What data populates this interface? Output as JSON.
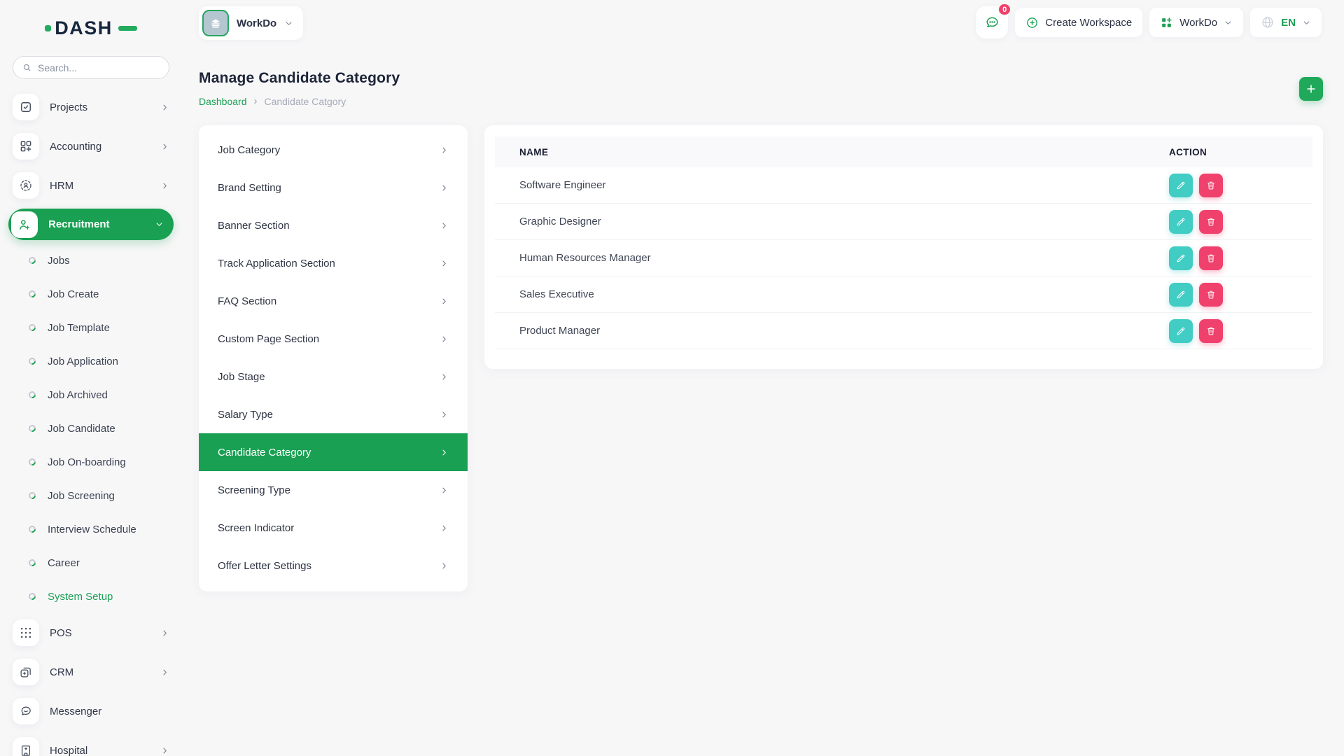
{
  "app": {
    "name": "DASH"
  },
  "colors": {
    "primary_green": "#1aa053",
    "logo_green": "#23ab5e",
    "edit_teal": "#41ccc4",
    "danger_pink": "#f0416c",
    "text_dark": "#1c2437",
    "text_muted": "#a6abb9",
    "page_bg": "#f7f7f8",
    "card_bg": "#ffffff",
    "table_header_bg": "#f9f9fb"
  },
  "icons": {
    "breadcrumb_separator": "›"
  },
  "sidebar": {
    "logo_text": "DASH",
    "search_placeholder": "Search...",
    "items_top": [
      {
        "label": "Projects",
        "icon": "projects",
        "chevron": "chevron-right",
        "active": false
      },
      {
        "label": "Accounting",
        "icon": "accounting",
        "chevron": "chevron-right",
        "active": false
      },
      {
        "label": "HRM",
        "icon": "hrm",
        "chevron": "chevron-right",
        "active": false
      },
      {
        "label": "Recruitment",
        "icon": "recruitment",
        "chevron": "chevron-down",
        "active": true
      }
    ],
    "recruitment_submenu": [
      {
        "label": "Jobs",
        "active": false
      },
      {
        "label": "Job Create",
        "active": false
      },
      {
        "label": "Job Template",
        "active": false
      },
      {
        "label": "Job Application",
        "active": false
      },
      {
        "label": "Job Archived",
        "active": false
      },
      {
        "label": "Job Candidate",
        "active": false
      },
      {
        "label": "Job On-boarding",
        "active": false
      },
      {
        "label": "Job Screening",
        "active": false
      },
      {
        "label": "Interview Schedule",
        "active": false
      },
      {
        "label": "Career",
        "active": false
      },
      {
        "label": "System Setup",
        "active": true
      }
    ],
    "items_bottom": [
      {
        "label": "POS",
        "icon": "pos",
        "chevron": "chevron-right",
        "active": false
      },
      {
        "label": "CRM",
        "icon": "crm",
        "chevron": "chevron-right",
        "active": false
      },
      {
        "label": "Messenger",
        "icon": "messenger",
        "chevron": "",
        "active": false
      },
      {
        "label": "Hospital",
        "icon": "hospital",
        "chevron": "chevron-right",
        "active": false
      }
    ]
  },
  "topbar": {
    "workspace_chip_label": "WorkDo",
    "messages_badge": "0",
    "create_workspace_label": "Create Workspace",
    "workdo_menu_label": "WorkDo",
    "language_label": "EN"
  },
  "page": {
    "title": "Manage Candidate Category",
    "breadcrumb_home": "Dashboard",
    "breadcrumb_current": "Candidate Catgory"
  },
  "settings_menu": [
    {
      "label": "Job Category",
      "active": false
    },
    {
      "label": "Brand Setting",
      "active": false
    },
    {
      "label": "Banner Section",
      "active": false
    },
    {
      "label": "Track Application Section",
      "active": false
    },
    {
      "label": "FAQ Section",
      "active": false
    },
    {
      "label": "Custom Page Section",
      "active": false
    },
    {
      "label": "Job Stage",
      "active": false
    },
    {
      "label": "Salary Type",
      "active": false
    },
    {
      "label": "Candidate Category",
      "active": true
    },
    {
      "label": "Screening Type",
      "active": false
    },
    {
      "label": "Screen Indicator",
      "active": false
    },
    {
      "label": "Offer Letter Settings",
      "active": false
    }
  ],
  "table": {
    "columns": {
      "name": "NAME",
      "action": "ACTION"
    },
    "rows": [
      {
        "name": "Software Engineer"
      },
      {
        "name": "Graphic Designer"
      },
      {
        "name": "Human Resources Manager"
      },
      {
        "name": "Sales Executive"
      },
      {
        "name": "Product Manager"
      }
    ]
  }
}
